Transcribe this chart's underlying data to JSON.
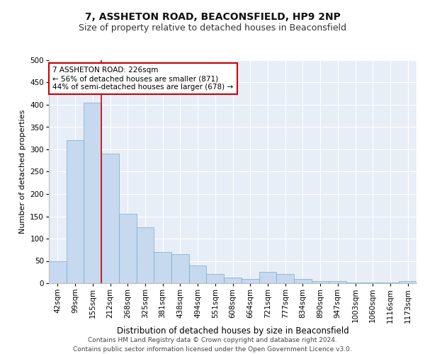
{
  "title1": "7, ASSHETON ROAD, BEACONSFIELD, HP9 2NP",
  "title2": "Size of property relative to detached houses in Beaconsfield",
  "xlabel": "Distribution of detached houses by size in Beaconsfield",
  "ylabel": "Number of detached properties",
  "footer1": "Contains HM Land Registry data © Crown copyright and database right 2024.",
  "footer2": "Contains public sector information licensed under the Open Government Licence v3.0.",
  "categories": [
    "42sqm",
    "99sqm",
    "155sqm",
    "212sqm",
    "268sqm",
    "325sqm",
    "381sqm",
    "438sqm",
    "494sqm",
    "551sqm",
    "608sqm",
    "664sqm",
    "721sqm",
    "777sqm",
    "834sqm",
    "890sqm",
    "947sqm",
    "1003sqm",
    "1060sqm",
    "1116sqm",
    "1173sqm"
  ],
  "values": [
    50,
    320,
    405,
    290,
    155,
    125,
    70,
    65,
    40,
    20,
    12,
    10,
    25,
    20,
    10,
    5,
    5,
    2,
    2,
    1,
    5
  ],
  "bar_color": "#c6d9ee",
  "bar_edgecolor": "#7aaac8",
  "background_color": "#e8eef8",
  "grid_color": "#ffffff",
  "vline_color": "#cc0000",
  "vline_pos": 2.5,
  "annotation_title": "7 ASSHETON ROAD: 226sqm",
  "annotation_line1": "← 56% of detached houses are smaller (871)",
  "annotation_line2": "44% of semi-detached houses are larger (678) →",
  "annotation_box_facecolor": "#ffffff",
  "annotation_box_edgecolor": "#cc0000",
  "ylim": [
    0,
    500
  ],
  "yticks": [
    0,
    50,
    100,
    150,
    200,
    250,
    300,
    350,
    400,
    450,
    500
  ],
  "title1_fontsize": 10,
  "title2_fontsize": 9,
  "xlabel_fontsize": 8.5,
  "ylabel_fontsize": 8,
  "tick_fontsize": 7.5,
  "annotation_fontsize": 7.5,
  "footer_fontsize": 6.5
}
